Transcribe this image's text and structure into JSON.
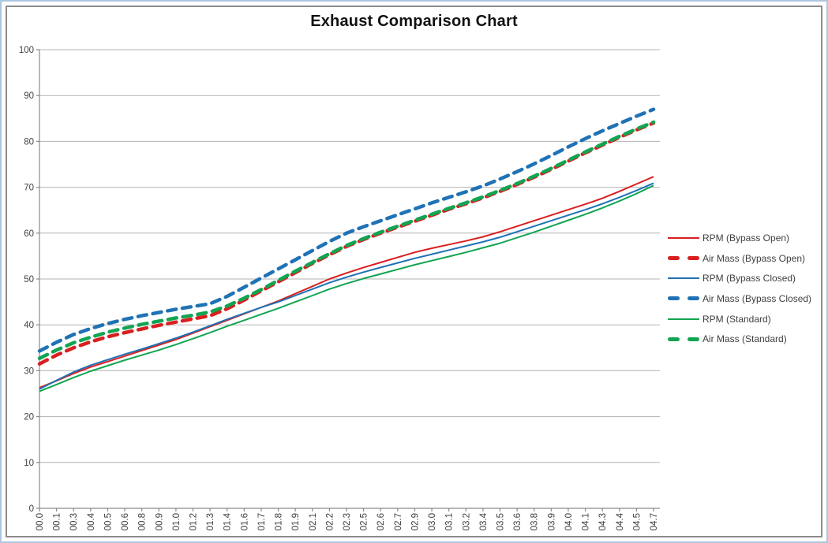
{
  "chart_data": {
    "type": "line",
    "title": "Exhaust Comparison Chart",
    "xlabel": "",
    "ylabel": "",
    "ylim": [
      0,
      100
    ],
    "yticks": [
      0,
      10,
      20,
      30,
      40,
      50,
      60,
      70,
      80,
      90,
      100
    ],
    "grid": true,
    "legend_position": "right",
    "categories": [
      "00.0",
      "00.1",
      "00.3",
      "00.4",
      "00.5",
      "00.6",
      "00.8",
      "00.9",
      "01.0",
      "01.2",
      "01.3",
      "01.4",
      "01.6",
      "01.7",
      "01.8",
      "01.9",
      "02.1",
      "02.2",
      "02.3",
      "02.5",
      "02.6",
      "02.7",
      "02.9",
      "03.0",
      "03.1",
      "03.2",
      "03.4",
      "03.5",
      "03.6",
      "03.8",
      "03.9",
      "04.0",
      "04.1",
      "04.3",
      "04.4",
      "04.5",
      "04.7"
    ],
    "series": [
      {
        "name": "RPM (Bypass Open)",
        "color": "#d91f1f",
        "style": "solid",
        "values": [
          26.3,
          27.8,
          29.4,
          30.8,
          32.0,
          33.2,
          34.4,
          35.6,
          36.8,
          38.2,
          39.6,
          41.0,
          42.4,
          43.8,
          45.2,
          46.8,
          48.4,
          50.0,
          51.3,
          52.5,
          53.6,
          54.7,
          55.8,
          56.7,
          57.5,
          58.3,
          59.2,
          60.3,
          61.5,
          62.7,
          63.9,
          65.1,
          66.3,
          67.6,
          69.1,
          70.7,
          72.3
        ]
      },
      {
        "name": "Air Mass (Bypass Open)",
        "color": "#d91f1f",
        "style": "dashed",
        "values": [
          31.5,
          33.4,
          35.0,
          36.3,
          37.4,
          38.3,
          39.1,
          39.9,
          40.6,
          41.3,
          42.0,
          43.5,
          45.4,
          47.4,
          49.4,
          51.4,
          53.4,
          55.3,
          57.1,
          58.6,
          60.0,
          61.3,
          62.6,
          63.9,
          65.2,
          66.4,
          67.7,
          69.1,
          70.6,
          72.2,
          73.9,
          75.7,
          77.5,
          79.2,
          80.9,
          82.5,
          84.0
        ]
      },
      {
        "name": "RPM (Bypass Closed)",
        "color": "#1f72b5",
        "style": "solid",
        "values": [
          26.0,
          27.9,
          29.7,
          31.2,
          32.4,
          33.6,
          34.7,
          35.9,
          37.1,
          38.4,
          39.8,
          41.2,
          42.5,
          43.8,
          45.0,
          46.4,
          47.8,
          49.2,
          50.4,
          51.5,
          52.5,
          53.5,
          54.5,
          55.4,
          56.3,
          57.2,
          58.1,
          59.1,
          60.3,
          61.5,
          62.7,
          63.9,
          65.1,
          66.4,
          67.8,
          69.3,
          70.9
        ]
      },
      {
        "name": "Air Mass (Bypass Closed)",
        "color": "#1f72b5",
        "style": "dashed",
        "values": [
          34.3,
          36.2,
          37.9,
          39.2,
          40.3,
          41.2,
          42.0,
          42.7,
          43.4,
          44.0,
          44.6,
          46.2,
          48.2,
          50.2,
          52.2,
          54.2,
          56.2,
          58.2,
          60.0,
          61.4,
          62.7,
          64.0,
          65.3,
          66.6,
          67.8,
          69.0,
          70.3,
          71.8,
          73.4,
          75.1,
          76.9,
          78.8,
          80.6,
          82.3,
          83.9,
          85.5,
          87.0
        ]
      },
      {
        "name": "RPM (Standard)",
        "color": "#12a452",
        "style": "solid",
        "values": [
          25.5,
          27.0,
          28.5,
          29.9,
          31.1,
          32.3,
          33.4,
          34.5,
          35.7,
          37.0,
          38.3,
          39.7,
          41.0,
          42.3,
          43.6,
          45.0,
          46.4,
          47.8,
          49.0,
          50.1,
          51.1,
          52.1,
          53.1,
          54.0,
          54.9,
          55.8,
          56.8,
          57.8,
          59.0,
          60.2,
          61.5,
          62.8,
          64.1,
          65.5,
          67.0,
          68.6,
          70.4
        ]
      },
      {
        "name": "Air Mass (Standard)",
        "color": "#12a452",
        "style": "dashed",
        "values": [
          32.7,
          34.5,
          36.1,
          37.3,
          38.4,
          39.3,
          40.1,
          40.8,
          41.5,
          42.1,
          42.8,
          44.1,
          45.8,
          47.7,
          49.7,
          51.7,
          53.6,
          55.5,
          57.3,
          58.8,
          60.2,
          61.5,
          62.8,
          64.1,
          65.4,
          66.6,
          67.9,
          69.3,
          70.8,
          72.4,
          74.1,
          75.9,
          77.7,
          79.4,
          81.1,
          82.7,
          84.2
        ]
      }
    ],
    "axis_color": "#8a8a8a",
    "gridline_color": "#b3b3b3",
    "tick_label_color": "#404040"
  }
}
